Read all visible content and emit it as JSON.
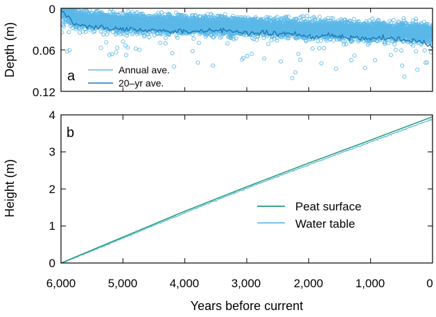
{
  "figure": {
    "xlabel": "Years before current",
    "x_tick_labels": [
      "6,000",
      "5,000",
      "4,000",
      "3,000",
      "2,000",
      "1,000",
      "0"
    ]
  },
  "chart_data": [
    {
      "type": "scatter",
      "panel_label": "a",
      "title": "",
      "xlabel": "Years before current",
      "ylabel": "Depth (m)",
      "xlim": [
        6000,
        0
      ],
      "ylim": [
        0,
        0.12
      ],
      "y_inverted": true,
      "x_ticks": [
        6000,
        5000,
        4000,
        3000,
        2000,
        1000,
        0
      ],
      "y_ticks": [
        0,
        0.06,
        0.12
      ],
      "y_tick_labels": [
        "0",
        "0.06",
        "0.12"
      ],
      "legend_position": "bottom-left",
      "series": [
        {
          "name": "Annual ave.",
          "color": "#5bb8e8",
          "style": "open-circles",
          "model": "depth ≈ 0.002 + 0.016·(1 − e^(−age/200)) + 0.018·age/6000, annual scatter with occasional deep outliers",
          "sample_x": [
            6000,
            5500,
            5000,
            4500,
            4000,
            3500,
            3000,
            2500,
            2000,
            1500,
            1000,
            500,
            200,
            0
          ],
          "sample_y": [
            0.003,
            0.027,
            0.033,
            0.034,
            0.036,
            0.033,
            0.036,
            0.038,
            0.04,
            0.044,
            0.046,
            0.048,
            0.049,
            0.05
          ]
        },
        {
          "name": "20–yr ave.",
          "color": "#1f77b4",
          "style": "line",
          "x": [
            6000,
            5800,
            5600,
            5400,
            5200,
            5000,
            4800,
            4500,
            4200,
            4000,
            3700,
            3400,
            3000,
            2700,
            2400,
            2000,
            1700,
            1400,
            1000,
            700,
            400,
            200,
            100,
            0
          ],
          "y": [
            0.003,
            0.021,
            0.025,
            0.027,
            0.029,
            0.03,
            0.031,
            0.032,
            0.033,
            0.034,
            0.033,
            0.032,
            0.035,
            0.036,
            0.037,
            0.039,
            0.04,
            0.042,
            0.043,
            0.044,
            0.046,
            0.047,
            0.05,
            0.058
          ]
        }
      ]
    },
    {
      "type": "line",
      "panel_label": "b",
      "title": "",
      "xlabel": "Years before current",
      "ylabel": "Height (m)",
      "xlim": [
        6000,
        0
      ],
      "ylim": [
        0,
        4
      ],
      "x_ticks": [
        6000,
        5000,
        4000,
        3000,
        2000,
        1000,
        0
      ],
      "y_ticks": [
        0,
        1,
        2,
        3,
        4
      ],
      "y_tick_labels": [
        "0",
        "1",
        "2",
        "3",
        "4"
      ],
      "legend_position": "lower-right",
      "series": [
        {
          "name": "Peat surface",
          "color": "#1f9e6e",
          "x": [
            6000,
            5000,
            4000,
            3000,
            2000,
            1000,
            0
          ],
          "y": [
            0.0,
            0.7,
            1.4,
            2.06,
            2.7,
            3.32,
            3.95
          ]
        },
        {
          "name": "Water table",
          "color": "#6ab9e6",
          "x": [
            6000,
            5000,
            4000,
            3000,
            2000,
            1000,
            0
          ],
          "y": [
            0.0,
            0.68,
            1.37,
            2.03,
            2.66,
            3.28,
            3.9
          ]
        }
      ]
    }
  ]
}
